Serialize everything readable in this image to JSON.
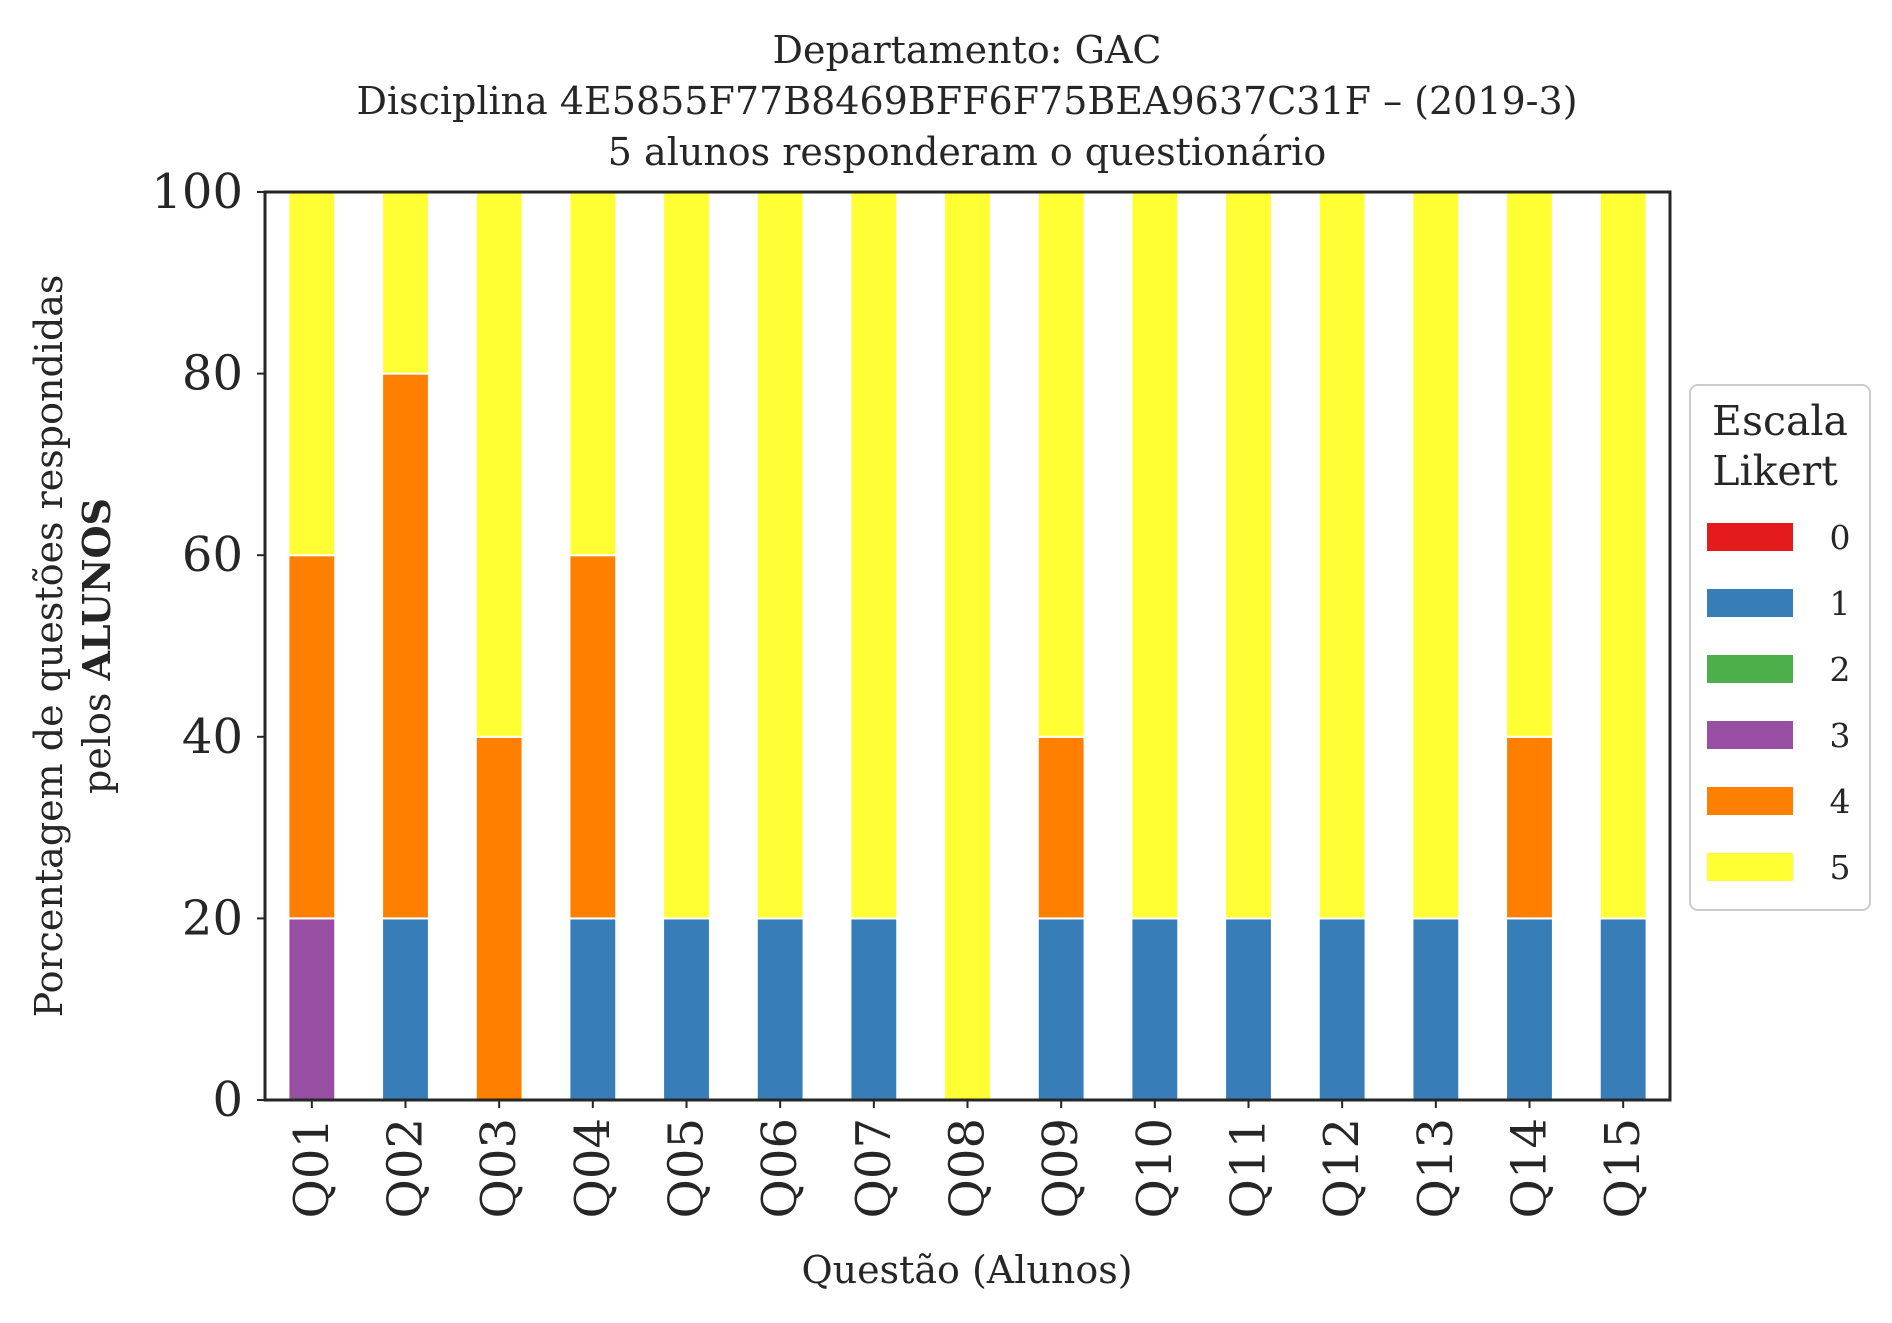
{
  "chart_data": {
    "type": "bar",
    "stacked": true,
    "title_lines": [
      "Departamento: GAC",
      "Disciplina 4E5855F77B8469BFF6F75BEA9637C31F – (2019-3)",
      "5 alunos responderam o questionário"
    ],
    "xlabel": "Questão (Alunos)",
    "ylabel_line1": "Porcentagem de questões respondidas",
    "ylabel_line2_prefix": "pelos ",
    "ylabel_line2_bold": "ALUNOS",
    "ylim": [
      0,
      100
    ],
    "yticks": [
      "0",
      "20",
      "40",
      "60",
      "80",
      "100"
    ],
    "categories": [
      "Q01",
      "Q02",
      "Q03",
      "Q04",
      "Q05",
      "Q06",
      "Q07",
      "Q08",
      "Q09",
      "Q10",
      "Q11",
      "Q12",
      "Q13",
      "Q14",
      "Q15"
    ],
    "legend": {
      "title_line1": "Escala",
      "title_line2": "Likert",
      "placement": "right"
    },
    "series": [
      {
        "name": "0",
        "color": "#e41a1c",
        "values": [
          0,
          0,
          0,
          0,
          0,
          0,
          0,
          0,
          0,
          0,
          0,
          0,
          0,
          0,
          0
        ]
      },
      {
        "name": "1",
        "color": "#377eb8",
        "values": [
          0,
          20,
          0,
          20,
          20,
          20,
          20,
          0,
          20,
          20,
          20,
          20,
          20,
          20,
          20
        ]
      },
      {
        "name": "2",
        "color": "#4daf4a",
        "values": [
          0,
          0,
          0,
          0,
          0,
          0,
          0,
          0,
          0,
          0,
          0,
          0,
          0,
          0,
          0
        ]
      },
      {
        "name": "3",
        "color": "#984ea3",
        "values": [
          20,
          0,
          0,
          0,
          0,
          0,
          0,
          0,
          0,
          0,
          0,
          0,
          0,
          0,
          0
        ]
      },
      {
        "name": "4",
        "color": "#ff7f00",
        "values": [
          40,
          60,
          40,
          40,
          0,
          0,
          0,
          0,
          20,
          0,
          0,
          0,
          0,
          20,
          0
        ]
      },
      {
        "name": "5",
        "color": "#ffff33",
        "values": [
          40,
          20,
          60,
          40,
          80,
          80,
          80,
          100,
          60,
          80,
          80,
          80,
          80,
          60,
          80
        ]
      }
    ]
  }
}
